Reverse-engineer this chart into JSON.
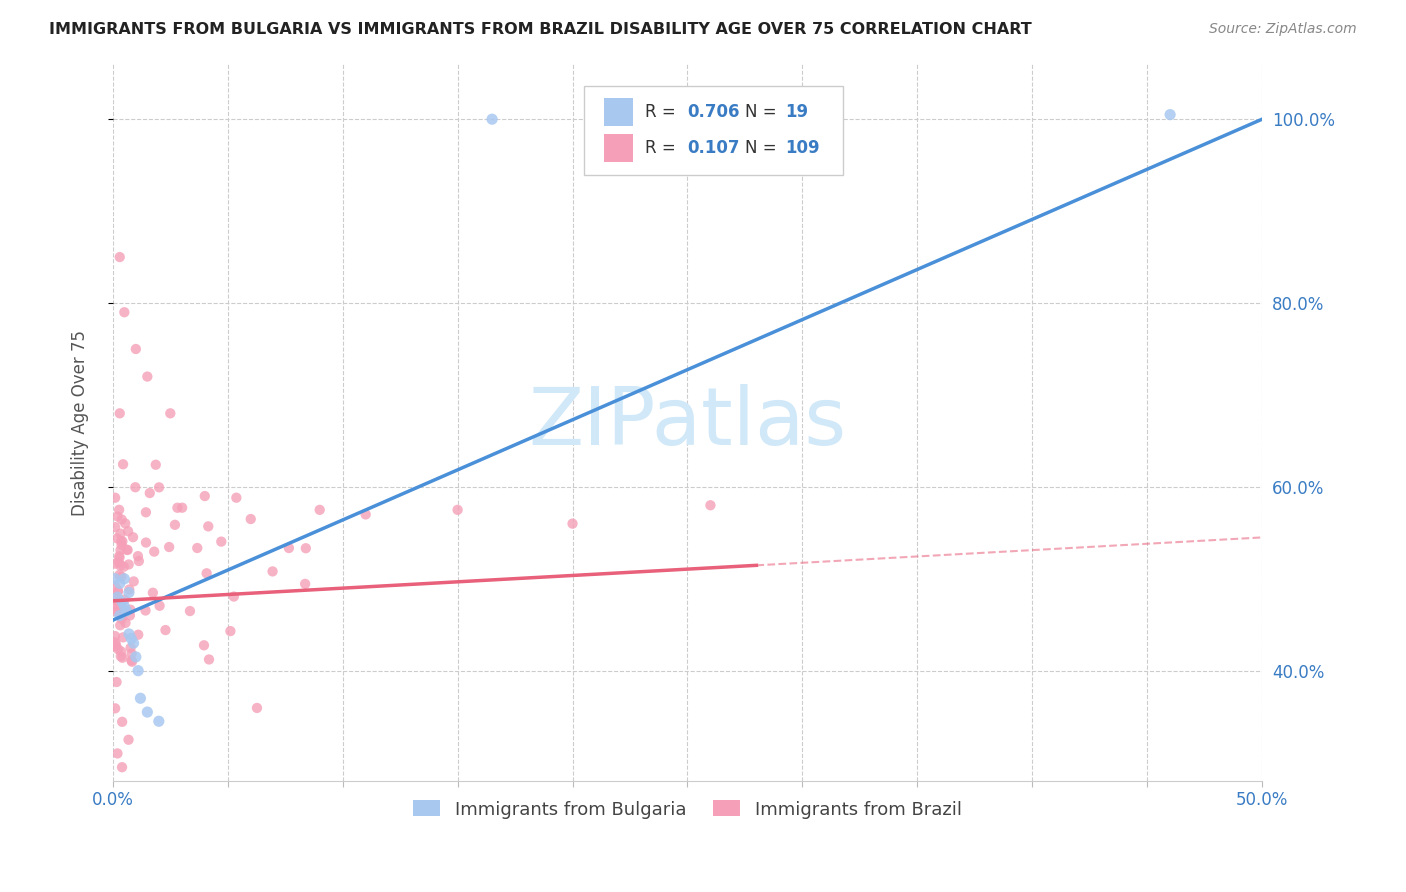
{
  "title": "IMMIGRANTS FROM BULGARIA VS IMMIGRANTS FROM BRAZIL DISABILITY AGE OVER 75 CORRELATION CHART",
  "source": "Source: ZipAtlas.com",
  "ylabel": "Disability Age Over 75",
  "xlim": [
    0.0,
    0.5
  ],
  "ylim": [
    0.28,
    1.06
  ],
  "xticks": [
    0.0,
    0.05,
    0.1,
    0.15,
    0.2,
    0.25,
    0.3,
    0.35,
    0.4,
    0.45,
    0.5
  ],
  "yticks": [
    0.4,
    0.6,
    0.8,
    1.0
  ],
  "ytick_labels": [
    "40.0%",
    "60.0%",
    "80.0%",
    "100.0%"
  ],
  "legend_R_bulgaria": "0.706",
  "legend_N_bulgaria": "19",
  "legend_R_brazil": "0.107",
  "legend_N_brazil": "109",
  "bulgaria_color": "#a8c8f0",
  "brazil_color": "#f5a0b8",
  "bulgaria_line_color": "#4a90d9",
  "brazil_line_color": "#e8607a",
  "bg_color": "#ffffff",
  "grid_color": "#cccccc",
  "watermark_color": "#d0e8f8",
  "title_color": "#222222",
  "source_color": "#888888",
  "tick_color": "#3a7cc4",
  "ylabel_color": "#555555",
  "legend_text_color": "#333333",
  "bul_trend_x0": 0.0,
  "bul_trend_y0": 0.455,
  "bul_trend_x1": 0.5,
  "bul_trend_y1": 1.0,
  "bra_trend_x0": 0.0,
  "bra_trend_y0": 0.476,
  "bra_trend_solid_x1": 0.28,
  "bra_trend_dashed_x1": 0.5,
  "bra_trend_y1": 0.545
}
